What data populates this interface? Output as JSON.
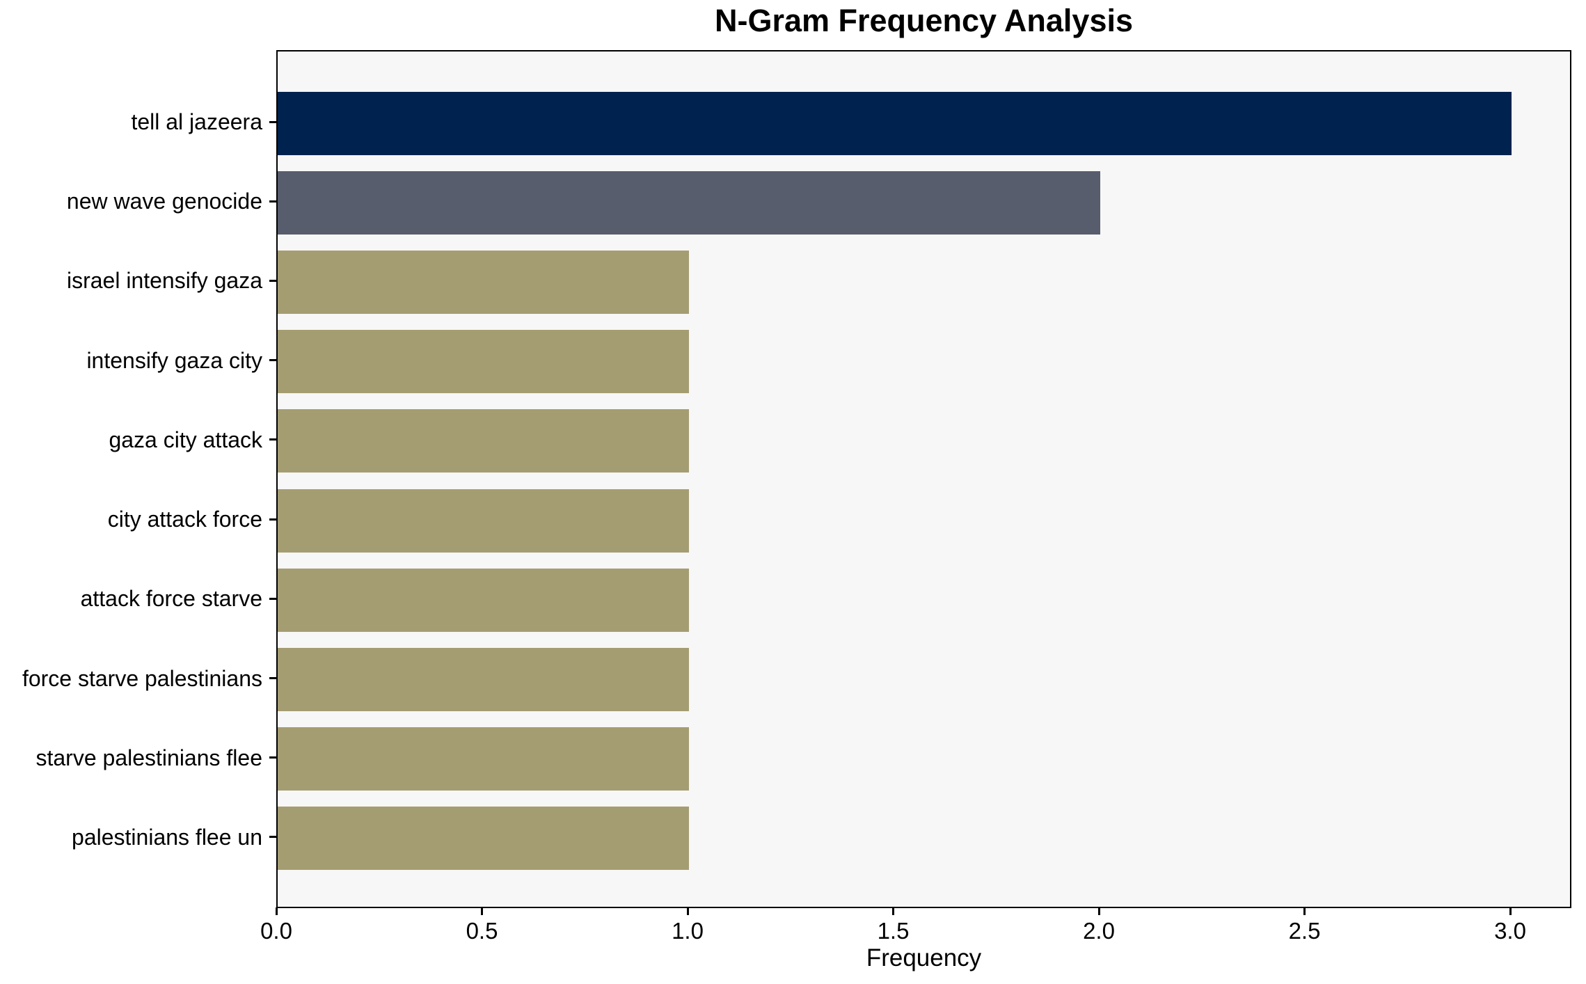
{
  "chart_data": {
    "type": "bar",
    "orientation": "horizontal",
    "title": "N-Gram Frequency Analysis",
    "xlabel": "Frequency",
    "ylabel": "",
    "categories": [
      "tell al jazeera",
      "new wave genocide",
      "israel intensify gaza",
      "intensify gaza city",
      "gaza city attack",
      "city attack force",
      "attack force starve",
      "force starve palestinians",
      "starve palestinians flee",
      "palestinians flee un"
    ],
    "values": [
      3,
      2,
      1,
      1,
      1,
      1,
      1,
      1,
      1,
      1
    ],
    "bar_colors": [
      "#00224e",
      "#575d6d",
      "#a59d72",
      "#a59d72",
      "#a59d72",
      "#a59d72",
      "#a59d72",
      "#a59d72",
      "#a59d72",
      "#a59d72"
    ],
    "xlim": [
      0.0,
      3.15
    ],
    "xticks": [
      "0.0",
      "0.5",
      "1.0",
      "1.5",
      "2.0",
      "2.5",
      "3.0"
    ],
    "grid": false,
    "legend": "none",
    "colors": {
      "axes_background": "#f7f7f7",
      "figure_background": "#ffffff",
      "spine": "#000000",
      "text": "#000000"
    }
  }
}
